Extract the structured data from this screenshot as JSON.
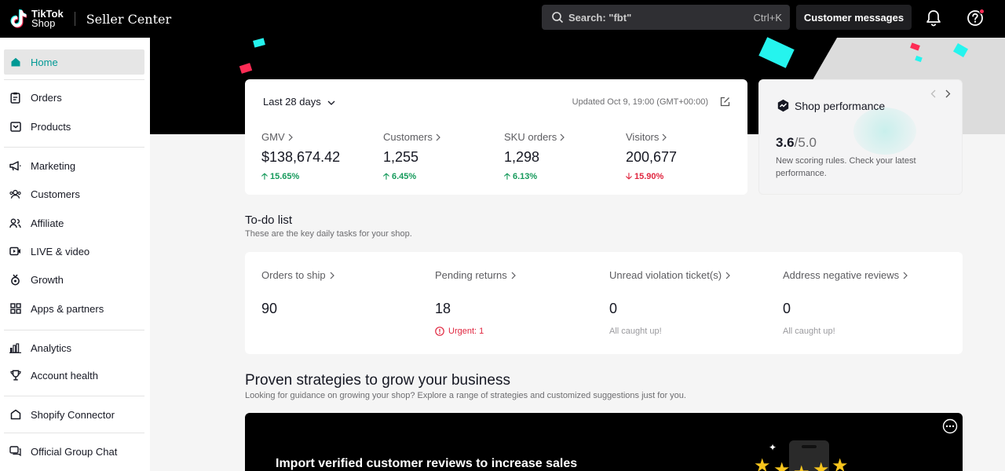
{
  "header": {
    "logo_line1": "TikTok",
    "logo_line2": "Shop",
    "app_title": "Seller Center",
    "search_placeholder": "Search: \"fbt\"",
    "search_shortcut": "Ctrl+K",
    "customer_messages": "Customer messages"
  },
  "sidebar": {
    "items": [
      {
        "label": "Home",
        "icon": "home-icon",
        "active": true
      },
      {
        "label": "Orders",
        "icon": "clipboard-icon"
      },
      {
        "label": "Products",
        "icon": "box-icon"
      },
      {
        "label": "Marketing",
        "icon": "megaphone-icon"
      },
      {
        "label": "Customers",
        "icon": "users-icon"
      },
      {
        "label": "Affiliate",
        "icon": "affiliate-icon"
      },
      {
        "label": "LIVE & video",
        "icon": "video-icon"
      },
      {
        "label": "Growth",
        "icon": "medal-icon"
      },
      {
        "label": "Apps & partners",
        "icon": "apps-icon"
      },
      {
        "label": "Analytics",
        "icon": "bar-chart-icon"
      },
      {
        "label": "Account health",
        "icon": "trophy-icon"
      },
      {
        "label": "Shopify Connector",
        "icon": "shopify-icon"
      },
      {
        "label": "Official Group Chat",
        "icon": "chat-icon"
      }
    ]
  },
  "stats": {
    "range": "Last 28 days",
    "updated": "Updated Oct 9, 19:00 (GMT+00:00)",
    "metrics": [
      {
        "label": "GMV",
        "value": "$138,674.42",
        "change": "15.65%",
        "direction": "up"
      },
      {
        "label": "Customers",
        "value": "1,255",
        "change": "6.45%",
        "direction": "up"
      },
      {
        "label": "SKU orders",
        "value": "1,298",
        "change": "6.13%",
        "direction": "up"
      },
      {
        "label": "Visitors",
        "value": "200,677",
        "change": "15.90%",
        "direction": "down"
      }
    ]
  },
  "performance": {
    "title": "Shop performance",
    "score": "3.6",
    "max": "/5.0",
    "description": "New scoring rules. Check your latest performance."
  },
  "todo": {
    "title": "To-do list",
    "subtitle": "These are the key daily tasks for your shop.",
    "items": [
      {
        "label": "Orders to ship",
        "value": "90",
        "note": ""
      },
      {
        "label": "Pending returns",
        "value": "18",
        "note": "Urgent: 1"
      },
      {
        "label": "Unread violation ticket(s)",
        "value": "0",
        "note": "All caught up!"
      },
      {
        "label": "Address negative reviews",
        "value": "0",
        "note": "All caught up!"
      }
    ]
  },
  "strategies": {
    "title": "Proven strategies to grow your business",
    "subtitle": "Looking for guidance on growing your shop? Explore a range of strategies and customized suggestions just for you.",
    "banner_title": "Import verified customer reviews to increase sales"
  },
  "colors": {
    "accent": "#009995",
    "up": "#159a5b",
    "down": "#e0263f",
    "cyan": "#25f4ee",
    "pink": "#fe2c55"
  }
}
